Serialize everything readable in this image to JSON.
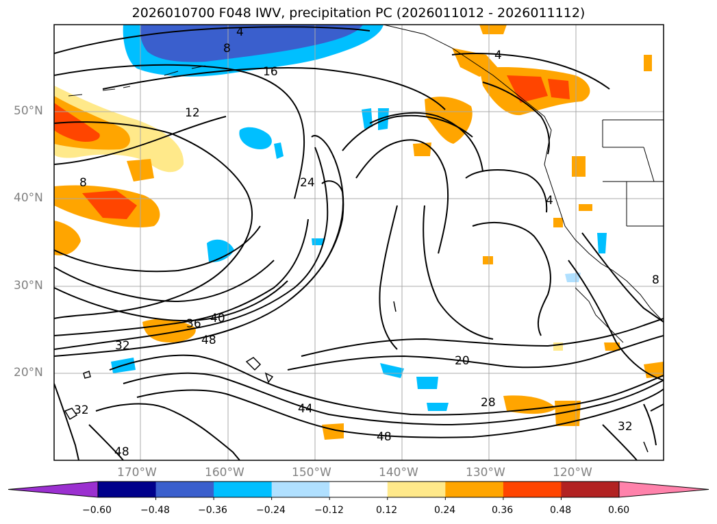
{
  "title": "2026010700 F048 IWV, precipitation PC (2026011012 - 2026011112)",
  "lat_labels": [
    "50°N",
    "40°N",
    "30°N",
    "20°N"
  ],
  "lon_labels": [
    "170°W",
    "160°W",
    "150°W",
    "140°W",
    "130°W",
    "120°W"
  ],
  "colorbar": {
    "ticks": [
      "−0.60",
      "−0.48",
      "−0.36",
      "−0.24",
      "−0.12",
      "0.12",
      "0.24",
      "0.36",
      "0.48",
      "0.60"
    ],
    "colors": [
      "#9b30d0",
      "#00008b",
      "#3a5fcd",
      "#00bfff",
      "#b0e0ff",
      "#ffffff",
      "#ffe98a",
      "#ffa500",
      "#ff4500",
      "#b22222",
      "#ff82ab"
    ]
  },
  "contour_labels": [
    {
      "text": "4"
    },
    {
      "text": "8"
    },
    {
      "text": "16"
    },
    {
      "text": "12"
    },
    {
      "text": "8"
    },
    {
      "text": "24"
    },
    {
      "text": "4"
    },
    {
      "text": "4"
    },
    {
      "text": "8"
    },
    {
      "text": "36"
    },
    {
      "text": "40"
    },
    {
      "text": "48"
    },
    {
      "text": "32"
    },
    {
      "text": "20"
    },
    {
      "text": "28"
    },
    {
      "text": "32"
    },
    {
      "text": "44"
    },
    {
      "text": "48"
    },
    {
      "text": "32"
    },
    {
      "text": "48"
    }
  ]
}
